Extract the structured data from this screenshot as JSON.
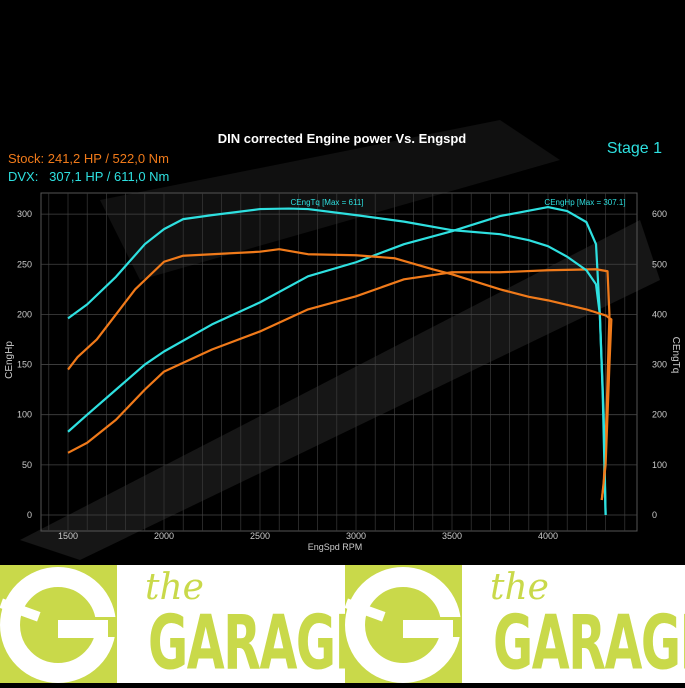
{
  "header": {
    "stock": "Stock: 241,2 HP / 522,0 Nm",
    "dvx": "DVX:   307,1 HP / 611,0 Nm",
    "stage": "Stage 1"
  },
  "chart_data": {
    "type": "line",
    "title": "DIN corrected Engine power Vs. Engspd",
    "xlabel": "EngSpd RPM",
    "ylabel": "CEngHp",
    "y2label": "CEngTq",
    "xlim": [
      1380,
      4440
    ],
    "ylim": [
      0,
      320
    ],
    "y2lim": [
      0,
      640
    ],
    "xticks": [
      1500,
      2000,
      2500,
      3000,
      3500,
      4000
    ],
    "yticks": [
      0,
      50,
      100,
      150,
      200,
      250,
      300
    ],
    "y2ticks": [
      0,
      100,
      200,
      300,
      400,
      500,
      600
    ],
    "grid": true,
    "annotations": [
      {
        "text": "CEngTq [Max = 611]",
        "x": 2650,
        "y2": 611
      },
      {
        "text": "CEngHp [Max = 307.1]",
        "x": 4000,
        "y": 307.1
      }
    ],
    "colors": {
      "stock": "#f07a1a",
      "dvx": "#2ee0e0"
    },
    "series": [
      {
        "id": "dvx-hp",
        "axis": "y",
        "color": "#2ee0e0",
        "x": [
          1500,
          1600,
          1750,
          1900,
          2000,
          2250,
          2500,
          2750,
          3000,
          3250,
          3500,
          3750,
          4000,
          4100,
          4200,
          4250,
          4270,
          4285,
          4295,
          4300
        ],
        "values": [
          83,
          100,
          125,
          150,
          163,
          190,
          212,
          238,
          252,
          270,
          283,
          298,
          307,
          303,
          292,
          270,
          200,
          120,
          40,
          0
        ]
      },
      {
        "id": "stock-hp",
        "axis": "y",
        "color": "#f07a1a",
        "x": [
          1500,
          1600,
          1750,
          1900,
          2000,
          2250,
          2500,
          2750,
          3000,
          3250,
          3500,
          3750,
          4000,
          4250,
          4310,
          4320,
          4305,
          4290,
          4280
        ],
        "values": [
          62,
          72,
          95,
          125,
          143,
          165,
          183,
          205,
          218,
          235,
          242,
          242,
          244,
          245,
          243,
          200,
          100,
          30,
          15
        ]
      },
      {
        "id": "dvx-tq",
        "axis": "y2",
        "color": "#2ee0e0",
        "x": [
          1500,
          1600,
          1750,
          1900,
          2000,
          2100,
          2250,
          2500,
          2650,
          2750,
          3000,
          3250,
          3500,
          3750,
          3900,
          4000,
          4100,
          4200,
          4250,
          4270,
          4280,
          4290,
          4300
        ],
        "values": [
          392,
          420,
          475,
          540,
          570,
          590,
          598,
          610,
          611,
          610,
          598,
          585,
          568,
          560,
          548,
          536,
          515,
          488,
          460,
          400,
          300,
          200,
          0
        ]
      },
      {
        "id": "stock-tq",
        "axis": "y2",
        "color": "#f07a1a",
        "x": [
          1500,
          1550,
          1650,
          1750,
          1850,
          2000,
          2100,
          2250,
          2500,
          2600,
          2750,
          3000,
          3200,
          3400,
          3500,
          3750,
          3900,
          4000,
          4200,
          4300,
          4330,
          4320,
          4300,
          4280
        ],
        "values": [
          290,
          315,
          350,
          400,
          450,
          505,
          517,
          520,
          525,
          530,
          520,
          518,
          512,
          490,
          480,
          450,
          435,
          428,
          410,
          398,
          390,
          300,
          100,
          30
        ]
      }
    ]
  },
  "logo": {
    "the": "the",
    "garage": "GARAGE"
  }
}
